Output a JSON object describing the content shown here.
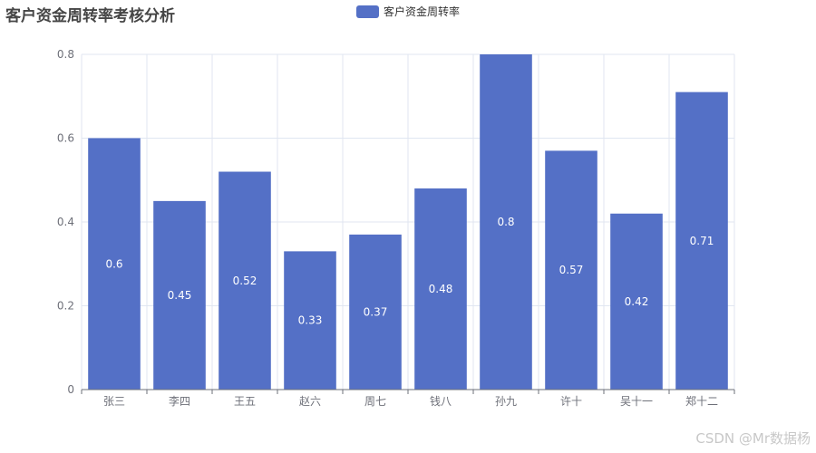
{
  "chart_data": {
    "type": "bar",
    "title": "客户资金周转率考核分析",
    "categories": [
      "张三",
      "李四",
      "王五",
      "赵六",
      "周七",
      "钱八",
      "孙九",
      "许十",
      "吴十一",
      "郑十二"
    ],
    "series": [
      {
        "name": "客户资金周转率",
        "values": [
          0.6,
          0.45,
          0.52,
          0.33,
          0.37,
          0.48,
          0.8,
          0.57,
          0.42,
          0.71
        ]
      }
    ],
    "ylim": [
      0,
      0.8
    ],
    "yticks": [
      "0",
      "0.2",
      "0.4",
      "0.6",
      "0.8"
    ],
    "grid": true,
    "legend_position": "top-center",
    "data_labels_position": "inside-center",
    "colors": {
      "bar": "#5470c6",
      "label": "#ffffff",
      "grid": "#e0e6f1",
      "axis": "#6e7079"
    }
  },
  "watermark": "CSDN @Mr数据杨"
}
